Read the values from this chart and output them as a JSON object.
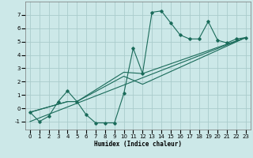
{
  "xlabel": "Humidex (Indice chaleur)",
  "ylabel": "",
  "bg_color": "#cce8e8",
  "grid_color": "#aacccc",
  "line_color": "#1a6b5a",
  "xlim": [
    -0.5,
    23.5
  ],
  "ylim": [
    -1.6,
    8.0
  ],
  "yticks": [
    -1,
    0,
    1,
    2,
    3,
    4,
    5,
    6,
    7
  ],
  "xticks": [
    0,
    1,
    2,
    3,
    4,
    5,
    6,
    7,
    8,
    9,
    10,
    11,
    12,
    13,
    14,
    15,
    16,
    17,
    18,
    19,
    20,
    21,
    22,
    23
  ],
  "series_main": {
    "x": [
      0,
      1,
      2,
      3,
      4,
      5,
      6,
      7,
      8,
      9,
      10,
      11,
      12,
      13,
      14,
      15,
      16,
      17,
      18,
      19,
      20,
      21,
      22,
      23
    ],
    "y": [
      -0.3,
      -1.0,
      -0.6,
      0.5,
      1.3,
      0.5,
      -0.5,
      -1.1,
      -1.1,
      -1.1,
      1.1,
      4.5,
      2.6,
      7.2,
      7.3,
      6.4,
      5.5,
      5.2,
      5.2,
      6.5,
      5.1,
      4.9,
      5.2,
      5.3
    ]
  },
  "series_trend": [
    {
      "x": [
        0,
        4,
        5,
        10,
        12,
        23
      ],
      "y": [
        -0.3,
        0.5,
        0.5,
        2.7,
        2.6,
        5.3
      ]
    },
    {
      "x": [
        0,
        4,
        5,
        10,
        12,
        23
      ],
      "y": [
        -0.3,
        0.5,
        0.5,
        2.4,
        1.8,
        5.3
      ]
    },
    {
      "x": [
        0,
        23
      ],
      "y": [
        -1.0,
        5.3
      ]
    }
  ]
}
